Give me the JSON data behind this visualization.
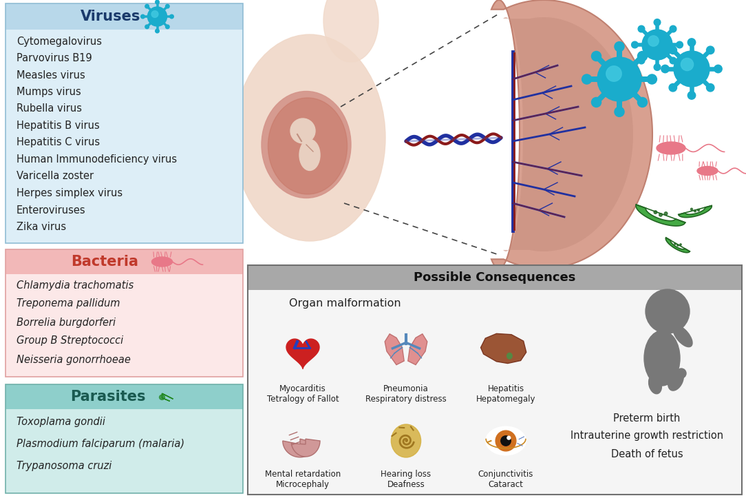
{
  "bg_color": "#ffffff",
  "viruses_header_bg": "#b8d8ea",
  "viruses_body_bg": "#ddeef7",
  "viruses_title": "Viruses",
  "viruses_title_color": "#1a3a6b",
  "viruses_list": [
    "Cytomegalovirus",
    "Parvovirus B19",
    "Measles virus",
    "Mumps virus",
    "Rubella virus",
    "Hepatitis B virus",
    "Hepatitis C virus",
    "Human Immunodeficiency virus",
    "Varicella zoster",
    "Herpes simplex virus",
    "Enteroviruses",
    "Zika virus"
  ],
  "bacteria_header_bg": "#f2b8b8",
  "bacteria_body_bg": "#fce8e8",
  "bacteria_title": "Bacteria",
  "bacteria_title_color": "#c0392b",
  "bacteria_list": [
    "Chlamydia trachomatis",
    "Treponema pallidum",
    "Borrelia burgdorferi",
    "Group B Streptococci",
    "Neisseria gonorrhoeae"
  ],
  "parasites_header_bg": "#8ecfcb",
  "parasites_body_bg": "#d0ecea",
  "parasites_title": "Parasites",
  "parasites_title_color": "#1a5a50",
  "parasites_list": [
    "Toxoplama gondii",
    "Plasmodium falciparum (malaria)",
    "Trypanosoma cruzi"
  ],
  "consequences_header_bg": "#a8a8a8",
  "consequences_body_bg": "#f5f5f5",
  "consequences_title": "Possible Consequences",
  "organ_malformation_label": "Organ malformation",
  "organ_labels_row1": [
    "Myocarditis\nTetralogy of Fallot",
    "Pneumonia\nRespiratory distress",
    "Hepatitis\nHepatomegaly"
  ],
  "organ_labels_row2": [
    "Mental retardation\nMicrocephaly",
    "Hearing loss\nDeafness",
    "Conjunctivitis\nCataract"
  ],
  "fetus_labels": [
    "Preterm birth",
    "Intrauterine growth restriction",
    "Death of fetus"
  ],
  "text_color": "#222222",
  "virus_color": "#1aaccc",
  "virus_inner": "#40c8e0",
  "bacteria_color": "#e87888",
  "parasite_color": "#44aa44",
  "parasite_dark": "#228822"
}
